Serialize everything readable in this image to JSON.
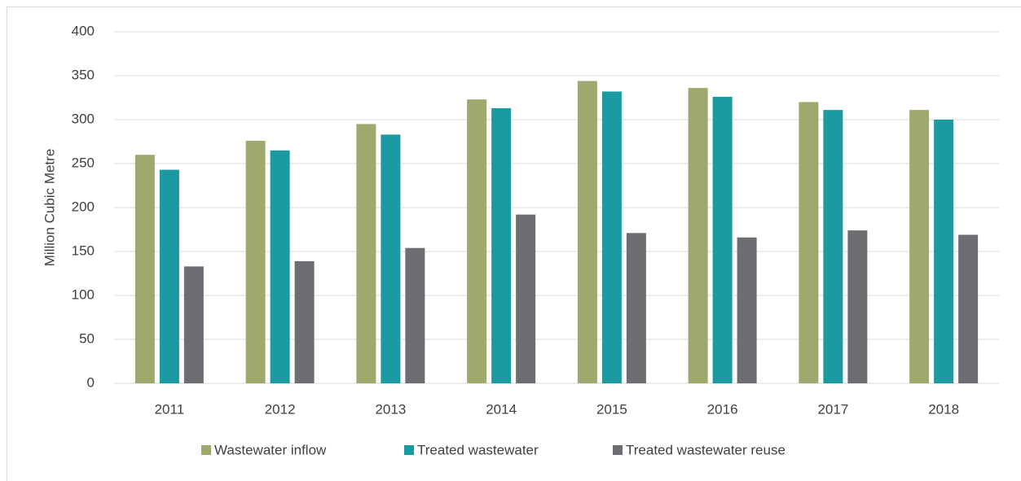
{
  "chart_data": {
    "type": "bar",
    "y_label": "Million Cubic Metre",
    "categories": [
      "2011",
      "2012",
      "2013",
      "2014",
      "2015",
      "2016",
      "2017",
      "2018"
    ],
    "series": [
      {
        "name": "Wastewater inflow",
        "color": "#9fa96e",
        "values": [
          260,
          276,
          295,
          323,
          344,
          336,
          320,
          311
        ]
      },
      {
        "name": "Treated wastewater",
        "color": "#1b9ba1",
        "values": [
          243,
          265,
          283,
          313,
          332,
          326,
          311,
          300
        ]
      },
      {
        "name": "Treated wastewater reuse",
        "color": "#6d6e71",
        "values": [
          133,
          139,
          154,
          192,
          171,
          166,
          174,
          169
        ]
      }
    ],
    "ylim": [
      0,
      400
    ],
    "yticks": [
      0,
      50,
      100,
      150,
      200,
      250,
      300,
      350,
      400
    ],
    "grid": true,
    "legend": "bottom"
  }
}
